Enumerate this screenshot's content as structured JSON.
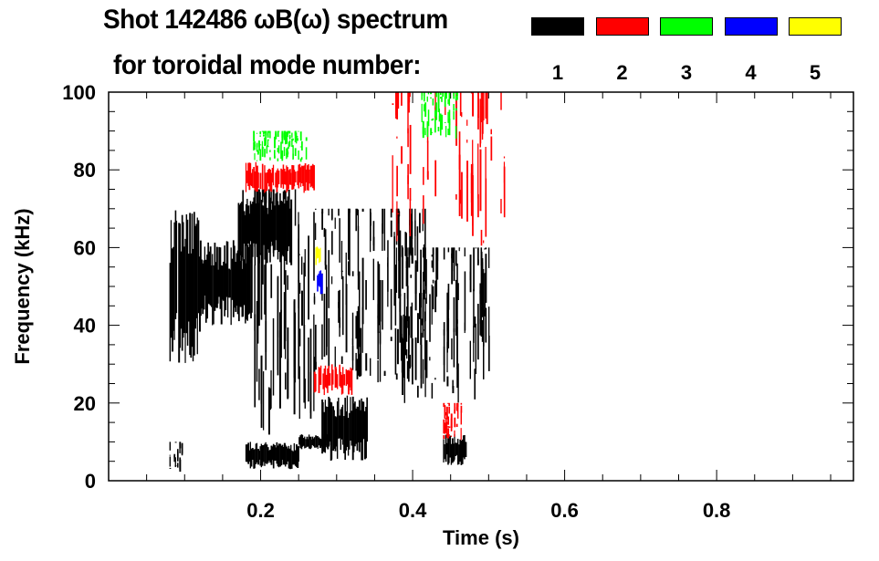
{
  "chart_data": {
    "type": "heatmap",
    "title": "Shot 142486 ωB(ω) spectrum",
    "subtitle": "for toroidal mode number:",
    "xlabel": "Time (s)",
    "ylabel": "Frequency (kHz)",
    "xlim": [
      0,
      0.98
    ],
    "ylim": [
      0,
      100
    ],
    "xticks": [
      "0.2",
      "0.4",
      "0.6",
      "0.8"
    ],
    "xtick_values": [
      0.2,
      0.4,
      0.6,
      0.8
    ],
    "yticks": [
      "0",
      "20",
      "40",
      "60",
      "80",
      "100"
    ],
    "ytick_values": [
      0,
      20,
      40,
      60,
      80,
      100
    ],
    "legend": [
      {
        "label": "1",
        "color": "#000000"
      },
      {
        "label": "2",
        "color": "#ff0000"
      },
      {
        "label": "3",
        "color": "#00ff00"
      },
      {
        "label": "4",
        "color": "#0000ff"
      },
      {
        "label": "5",
        "color": "#ffff00"
      }
    ],
    "regions": [
      {
        "mode": 1,
        "t": [
          0.08,
          0.12
        ],
        "f": [
          30,
          70
        ],
        "density": 0.8
      },
      {
        "mode": 1,
        "t": [
          0.12,
          0.19
        ],
        "f": [
          40,
          62
        ],
        "density": 0.8
      },
      {
        "mode": 1,
        "t": [
          0.17,
          0.24
        ],
        "f": [
          55,
          75
        ],
        "density": 0.85
      },
      {
        "mode": 1,
        "t": [
          0.19,
          0.27
        ],
        "f": [
          10,
          75
        ],
        "density": 0.45
      },
      {
        "mode": 1,
        "t": [
          0.18,
          0.25
        ],
        "f": [
          3,
          10
        ],
        "density": 0.95
      },
      {
        "mode": 1,
        "t": [
          0.25,
          0.29
        ],
        "f": [
          8,
          12
        ],
        "density": 0.9
      },
      {
        "mode": 1,
        "t": [
          0.28,
          0.34
        ],
        "f": [
          5,
          22
        ],
        "density": 0.9
      },
      {
        "mode": 1,
        "t": [
          0.27,
          0.42
        ],
        "f": [
          25,
          70
        ],
        "density": 0.35
      },
      {
        "mode": 1,
        "t": [
          0.38,
          0.5
        ],
        "f": [
          20,
          60
        ],
        "density": 0.35
      },
      {
        "mode": 1,
        "t": [
          0.44,
          0.47
        ],
        "f": [
          4,
          12
        ],
        "density": 0.85
      },
      {
        "mode": 1,
        "t": [
          0.08,
          0.1
        ],
        "f": [
          2,
          10
        ],
        "density": 0.4
      },
      {
        "mode": 2,
        "t": [
          0.18,
          0.27
        ],
        "f": [
          74,
          82
        ],
        "density": 0.7
      },
      {
        "mode": 2,
        "t": [
          0.27,
          0.32
        ],
        "f": [
          22,
          30
        ],
        "density": 0.75
      },
      {
        "mode": 2,
        "t": [
          0.37,
          0.52
        ],
        "f": [
          60,
          100
        ],
        "density": 0.25
      },
      {
        "mode": 2,
        "t": [
          0.44,
          0.47
        ],
        "f": [
          10,
          20
        ],
        "density": 0.3
      },
      {
        "mode": 3,
        "t": [
          0.19,
          0.26
        ],
        "f": [
          82,
          90
        ],
        "density": 0.55
      },
      {
        "mode": 3,
        "t": [
          0.41,
          0.46
        ],
        "f": [
          88,
          100
        ],
        "density": 0.4
      },
      {
        "mode": 4,
        "t": [
          0.274,
          0.28
        ],
        "f": [
          48,
          55
        ],
        "density": 0.8
      },
      {
        "mode": 5,
        "t": [
          0.272,
          0.278
        ],
        "f": [
          55,
          62
        ],
        "density": 0.8
      }
    ]
  }
}
